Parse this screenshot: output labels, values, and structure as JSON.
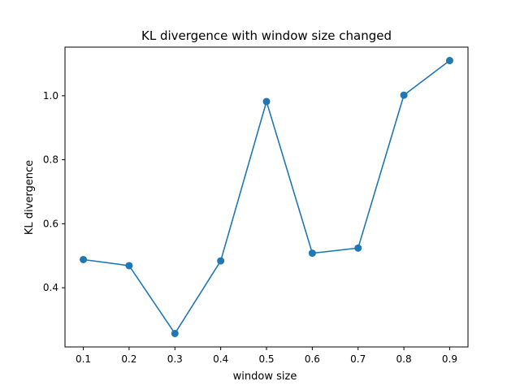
{
  "chart_data": {
    "type": "line",
    "title": "KL divergence with window size changed",
    "xlabel": "window size",
    "ylabel": "KL divergence",
    "x": [
      0.1,
      0.2,
      0.3,
      0.4,
      0.5,
      0.6,
      0.7,
      0.8,
      0.9
    ],
    "series": [
      {
        "values": [
          0.488,
          0.469,
          0.257,
          0.484,
          0.982,
          0.508,
          0.524,
          1.002,
          1.11
        ],
        "color": "#1f77b4",
        "marker": "circle"
      }
    ],
    "xlim": [
      0.06,
      0.94
    ],
    "ylim": [
      0.215,
      1.152
    ],
    "xticks": [
      0.1,
      0.2,
      0.3,
      0.4,
      0.5,
      0.6,
      0.7,
      0.8,
      0.9
    ],
    "xtick_labels": [
      "0.1",
      "0.2",
      "0.3",
      "0.4",
      "0.5",
      "0.6",
      "0.7",
      "0.8",
      "0.9"
    ],
    "yticks": [
      0.4,
      0.6,
      0.8,
      1.0
    ],
    "ytick_labels": [
      "0.4",
      "0.6",
      "0.8",
      "1.0"
    ],
    "grid": false,
    "legend": "none"
  }
}
